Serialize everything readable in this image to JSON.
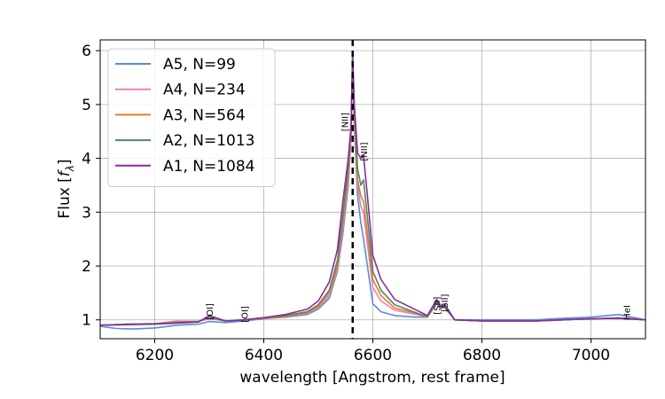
{
  "chart_data": {
    "type": "line",
    "xlabel": "wavelength [Angstrom, rest frame]",
    "ylabel": "Flux [f_λ]",
    "xlim": [
      6100,
      7100
    ],
    "ylim": [
      0.65,
      6.2
    ],
    "xticks": [
      6200,
      6400,
      6600,
      6800,
      7000
    ],
    "yticks": [
      1,
      2,
      3,
      4,
      5,
      6
    ],
    "grid": true,
    "legend_position": "top-left",
    "vline": {
      "x": 6563,
      "style": "dashed",
      "color": "#000000"
    },
    "annotations": [
      {
        "text": "[OI]",
        "x": 6300,
        "y": 1.0
      },
      {
        "text": "[OI]",
        "x": 6364,
        "y": 0.95
      },
      {
        "text": "[NII]",
        "x": 6548,
        "y": 4.5
      },
      {
        "text": "[NII]",
        "x": 6583,
        "y": 3.95
      },
      {
        "text": "[SII]",
        "x": 6717,
        "y": 1.1
      },
      {
        "text": "[SII]",
        "x": 6731,
        "y": 1.15
      },
      {
        "text": "HeI",
        "x": 7065,
        "y": 1.0
      }
    ],
    "series": [
      {
        "name": "A5, N=99",
        "color": "#5b8bd8",
        "points": [
          [
            6100,
            0.88
          ],
          [
            6130,
            0.84
          ],
          [
            6160,
            0.83
          ],
          [
            6200,
            0.85
          ],
          [
            6240,
            0.9
          ],
          [
            6280,
            0.92
          ],
          [
            6300,
            0.97
          ],
          [
            6330,
            0.95
          ],
          [
            6364,
            0.98
          ],
          [
            6400,
            1.02
          ],
          [
            6440,
            1.05
          ],
          [
            6480,
            1.1
          ],
          [
            6500,
            1.2
          ],
          [
            6520,
            1.4
          ],
          [
            6535,
            1.9
          ],
          [
            6545,
            2.6
          ],
          [
            6555,
            3.5
          ],
          [
            6560,
            4.4
          ],
          [
            6563,
            5.9
          ],
          [
            6566,
            4.6
          ],
          [
            6572,
            3.3
          ],
          [
            6578,
            2.8
          ],
          [
            6583,
            2.5
          ],
          [
            6590,
            2.0
          ],
          [
            6600,
            1.3
          ],
          [
            6615,
            1.15
          ],
          [
            6640,
            1.08
          ],
          [
            6680,
            1.05
          ],
          [
            6700,
            1.05
          ],
          [
            6717,
            1.35
          ],
          [
            6725,
            1.25
          ],
          [
            6731,
            1.3
          ],
          [
            6750,
            1.0
          ],
          [
            6800,
            1.0
          ],
          [
            6850,
            1.0
          ],
          [
            6900,
            1.0
          ],
          [
            6950,
            1.03
          ],
          [
            7000,
            1.05
          ],
          [
            7050,
            1.1
          ],
          [
            7100,
            1.0
          ]
        ]
      },
      {
        "name": "A4, N=234",
        "color": "#e881b8",
        "points": [
          [
            6100,
            0.9
          ],
          [
            6150,
            0.92
          ],
          [
            6200,
            0.93
          ],
          [
            6240,
            0.98
          ],
          [
            6280,
            0.97
          ],
          [
            6300,
            1.02
          ],
          [
            6330,
            0.98
          ],
          [
            6364,
            1.0
          ],
          [
            6400,
            1.03
          ],
          [
            6440,
            1.06
          ],
          [
            6480,
            1.12
          ],
          [
            6500,
            1.22
          ],
          [
            6520,
            1.45
          ],
          [
            6535,
            1.95
          ],
          [
            6545,
            2.7
          ],
          [
            6555,
            3.6
          ],
          [
            6560,
            4.4
          ],
          [
            6563,
            5.85
          ],
          [
            6566,
            4.7
          ],
          [
            6572,
            3.5
          ],
          [
            6578,
            3.1
          ],
          [
            6583,
            3.0
          ],
          [
            6590,
            2.4
          ],
          [
            6600,
            1.6
          ],
          [
            6615,
            1.35
          ],
          [
            6640,
            1.18
          ],
          [
            6680,
            1.1
          ],
          [
            6700,
            1.05
          ],
          [
            6717,
            1.3
          ],
          [
            6725,
            1.22
          ],
          [
            6731,
            1.25
          ],
          [
            6750,
            1.0
          ],
          [
            6800,
            0.98
          ],
          [
            6850,
            0.98
          ],
          [
            6900,
            0.98
          ],
          [
            6950,
            1.0
          ],
          [
            7000,
            1.02
          ],
          [
            7050,
            1.04
          ],
          [
            7100,
            1.0
          ]
        ]
      },
      {
        "name": "A3, N=564",
        "color": "#e07f2c",
        "points": [
          [
            6100,
            0.9
          ],
          [
            6150,
            0.92
          ],
          [
            6200,
            0.93
          ],
          [
            6240,
            0.96
          ],
          [
            6280,
            0.97
          ],
          [
            6300,
            1.05
          ],
          [
            6330,
            0.98
          ],
          [
            6364,
            1.0
          ],
          [
            6400,
            1.03
          ],
          [
            6440,
            1.06
          ],
          [
            6480,
            1.13
          ],
          [
            6500,
            1.25
          ],
          [
            6520,
            1.5
          ],
          [
            6535,
            2.0
          ],
          [
            6545,
            2.8
          ],
          [
            6555,
            3.7
          ],
          [
            6560,
            4.5
          ],
          [
            6563,
            5.8
          ],
          [
            6566,
            4.8
          ],
          [
            6572,
            3.6
          ],
          [
            6578,
            3.3
          ],
          [
            6583,
            3.2
          ],
          [
            6590,
            2.6
          ],
          [
            6600,
            1.75
          ],
          [
            6615,
            1.45
          ],
          [
            6640,
            1.22
          ],
          [
            6680,
            1.12
          ],
          [
            6700,
            1.05
          ],
          [
            6717,
            1.32
          ],
          [
            6725,
            1.22
          ],
          [
            6731,
            1.25
          ],
          [
            6750,
            1.0
          ],
          [
            6800,
            0.98
          ],
          [
            6850,
            0.98
          ],
          [
            6900,
            0.98
          ],
          [
            6950,
            1.0
          ],
          [
            7000,
            1.02
          ],
          [
            7050,
            1.03
          ],
          [
            7100,
            1.0
          ]
        ]
      },
      {
        "name": "A2, N=1013",
        "color": "#4e8a5f",
        "points": [
          [
            6100,
            0.9
          ],
          [
            6150,
            0.92
          ],
          [
            6200,
            0.93
          ],
          [
            6240,
            0.95
          ],
          [
            6280,
            0.97
          ],
          [
            6300,
            1.05
          ],
          [
            6330,
            0.98
          ],
          [
            6364,
            1.0
          ],
          [
            6400,
            1.04
          ],
          [
            6440,
            1.08
          ],
          [
            6480,
            1.15
          ],
          [
            6500,
            1.28
          ],
          [
            6520,
            1.55
          ],
          [
            6535,
            2.1
          ],
          [
            6545,
            2.95
          ],
          [
            6555,
            3.85
          ],
          [
            6560,
            4.55
          ],
          [
            6563,
            5.75
          ],
          [
            6566,
            4.9
          ],
          [
            6572,
            3.8
          ],
          [
            6578,
            3.5
          ],
          [
            6583,
            3.6
          ],
          [
            6590,
            2.9
          ],
          [
            6600,
            1.9
          ],
          [
            6615,
            1.55
          ],
          [
            6640,
            1.28
          ],
          [
            6680,
            1.13
          ],
          [
            6700,
            1.06
          ],
          [
            6717,
            1.32
          ],
          [
            6725,
            1.22
          ],
          [
            6731,
            1.24
          ],
          [
            6750,
            1.0
          ],
          [
            6800,
            0.98
          ],
          [
            6850,
            0.98
          ],
          [
            6900,
            0.98
          ],
          [
            6950,
            1.0
          ],
          [
            7000,
            1.02
          ],
          [
            7050,
            1.03
          ],
          [
            7100,
            1.0
          ]
        ]
      },
      {
        "name": "A1, N=1084",
        "color": "#8b2a9e",
        "points": [
          [
            6100,
            0.9
          ],
          [
            6150,
            0.91
          ],
          [
            6200,
            0.92
          ],
          [
            6240,
            0.94
          ],
          [
            6280,
            0.96
          ],
          [
            6300,
            1.08
          ],
          [
            6330,
            0.98
          ],
          [
            6364,
            1.0
          ],
          [
            6400,
            1.04
          ],
          [
            6440,
            1.1
          ],
          [
            6480,
            1.2
          ],
          [
            6500,
            1.35
          ],
          [
            6520,
            1.7
          ],
          [
            6535,
            2.3
          ],
          [
            6545,
            3.2
          ],
          [
            6555,
            4.0
          ],
          [
            6560,
            4.6
          ],
          [
            6563,
            5.95
          ],
          [
            6566,
            5.0
          ],
          [
            6572,
            4.1
          ],
          [
            6578,
            4.0
          ],
          [
            6583,
            4.05
          ],
          [
            6590,
            3.3
          ],
          [
            6600,
            2.2
          ],
          [
            6615,
            1.75
          ],
          [
            6640,
            1.38
          ],
          [
            6680,
            1.18
          ],
          [
            6700,
            1.08
          ],
          [
            6717,
            1.38
          ],
          [
            6725,
            1.25
          ],
          [
            6731,
            1.28
          ],
          [
            6750,
            1.0
          ],
          [
            6800,
            0.98
          ],
          [
            6850,
            0.98
          ],
          [
            6900,
            0.98
          ],
          [
            6950,
            1.0
          ],
          [
            7000,
            1.02
          ],
          [
            7050,
            1.03
          ],
          [
            7100,
            1.0
          ]
        ]
      }
    ]
  }
}
